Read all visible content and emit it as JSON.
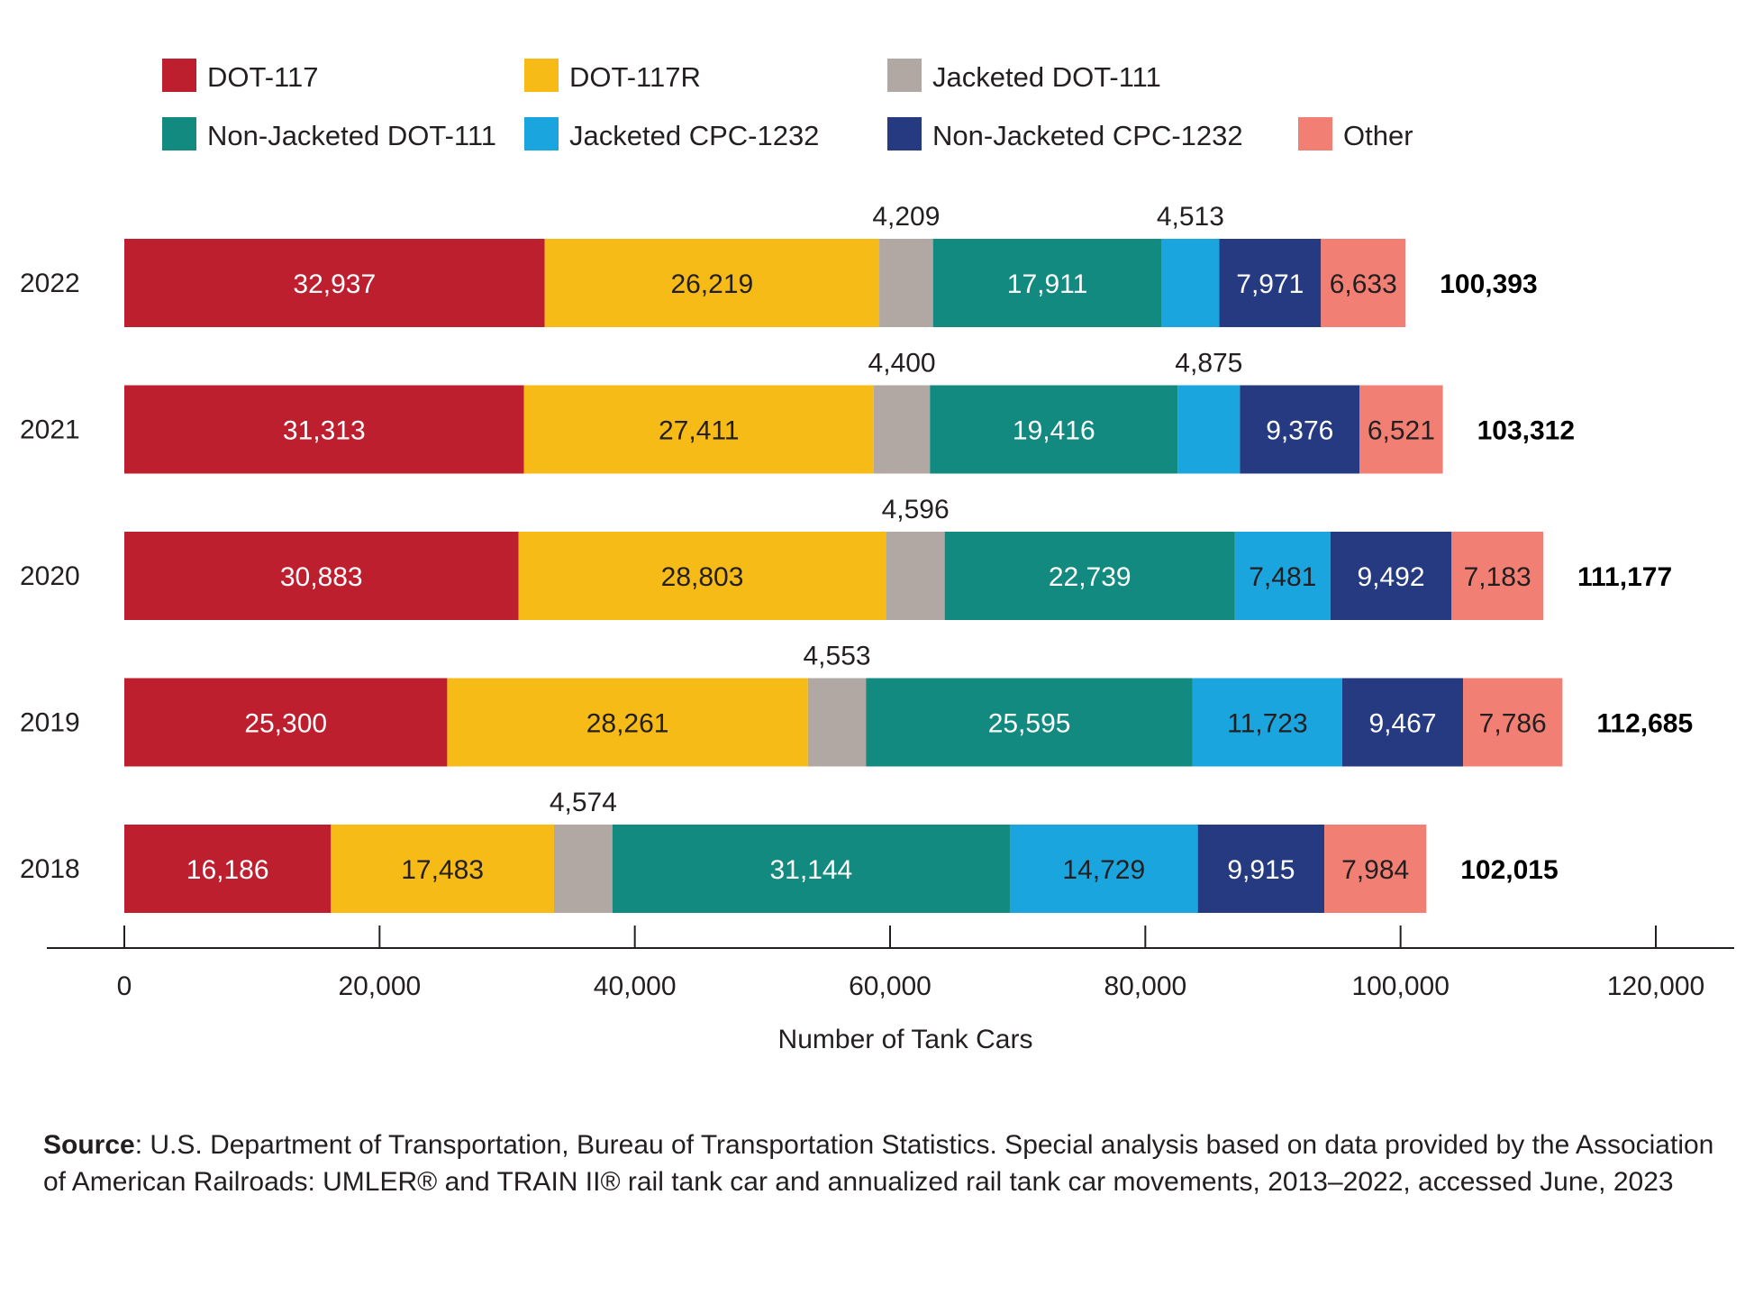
{
  "chart_data": {
    "type": "bar",
    "orientation": "horizontal",
    "stacked": true,
    "categories": [
      "2022",
      "2021",
      "2020",
      "2019",
      "2018"
    ],
    "series": [
      {
        "name": "DOT-117",
        "color": "#bd1f2e",
        "label_color": "#ffffff",
        "values": [
          32937,
          31313,
          30883,
          25300,
          16186
        ],
        "labels": [
          "32,937",
          "31,313",
          "30,883",
          "25,300",
          "16,186"
        ]
      },
      {
        "name": "DOT-117R",
        "color": "#f6bb16",
        "label_color": "#231f20",
        "values": [
          26219,
          27411,
          28803,
          28261,
          17483
        ],
        "labels": [
          "26,219",
          "27,411",
          "28,803",
          "28,261",
          "17,483"
        ]
      },
      {
        "name": "Jacketed DOT-111",
        "color": "#b1a8a3",
        "label_color": "#231f20",
        "label_position": "above",
        "values": [
          4209,
          4400,
          4596,
          4553,
          4574
        ],
        "labels": [
          "4,209",
          "4,400",
          "4,596",
          "4,553",
          "4,574"
        ]
      },
      {
        "name": "Non-Jacketed DOT-111",
        "color": "#138a80",
        "label_color": "#ffffff",
        "values": [
          17911,
          19416,
          22739,
          25595,
          31144
        ],
        "labels": [
          "17,911",
          "19,416",
          "22,739",
          "25,595",
          "31,144"
        ]
      },
      {
        "name": "Jacketed CPC-1232",
        "color": "#1aa5de",
        "label_color": "#231f20",
        "values": [
          4513,
          4875,
          7481,
          11723,
          14729
        ],
        "labels": [
          "4,513",
          "4,875",
          "7,481",
          "11,723",
          "14,729"
        ],
        "above_when_small": 5000
      },
      {
        "name": "Non-Jacketed CPC-1232",
        "color": "#253a80",
        "label_color": "#ffffff",
        "values": [
          7971,
          9376,
          9492,
          9467,
          9915
        ],
        "labels": [
          "7,971",
          "9,376",
          "9,492",
          "9,467",
          "9,915"
        ]
      },
      {
        "name": "Other",
        "color": "#f27f73",
        "label_color": "#231f20",
        "values": [
          6633,
          6521,
          7183,
          7786,
          7984
        ],
        "labels": [
          "6,633",
          "6,521",
          "7,183",
          "7,786",
          "7,984"
        ]
      }
    ],
    "totals": [
      100393,
      103312,
      111177,
      112685,
      102015
    ],
    "total_labels": [
      "100,393",
      "103,312",
      "111,177",
      "112,685",
      "102,015"
    ],
    "xlim": [
      0,
      120000
    ],
    "xticks": [
      0,
      20000,
      40000,
      60000,
      80000,
      100000,
      120000
    ],
    "xtick_labels": [
      "0",
      "20,000",
      "40,000",
      "60,000",
      "80,000",
      "100,000",
      "120,000"
    ],
    "xlabel": "Number of Tank Cars",
    "ylabel": "",
    "title": "",
    "grid": false,
    "legend_position": "top"
  },
  "source": {
    "label": "Source",
    "text": ": U.S. Department of Transportation, Bureau of Transportation Statistics. Special analysis based on data provided by the Association of American Railroads: UMLER® and TRAIN II® rail tank car and annualized rail tank car movements, 2013–2022, accessed June, 2023"
  }
}
